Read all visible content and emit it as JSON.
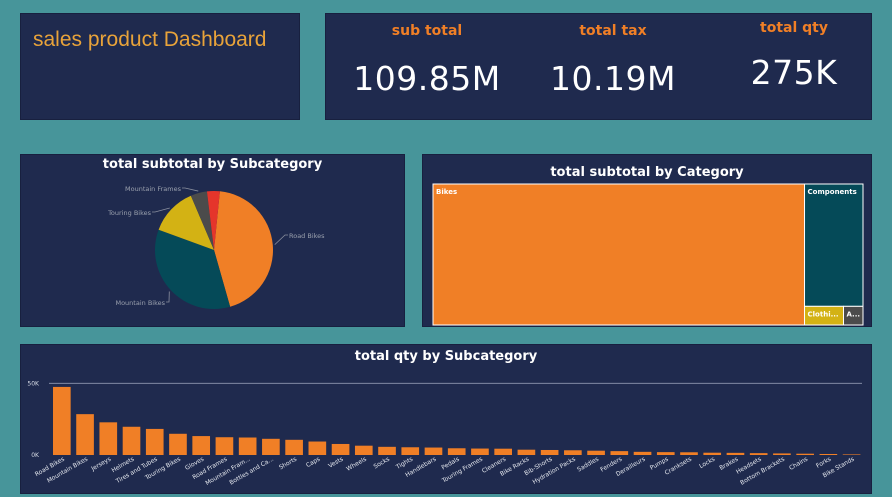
{
  "header": {
    "title": "sales product Dashboard"
  },
  "kpis": [
    {
      "label": "sub total",
      "value": "109.85M"
    },
    {
      "label": "total tax",
      "value": "10.19M"
    },
    {
      "label": "total qty",
      "value": "275K"
    }
  ],
  "colors": {
    "orange": "#f07f26",
    "teal": "#054a58",
    "gold": "#d3b214",
    "gray": "#4b4b4b",
    "red": "#e5352b",
    "panel": "#1f2a4e",
    "background": "#47959a"
  },
  "chart_data": [
    {
      "type": "pie",
      "title": "total subtotal by Subcategory",
      "slices": [
        {
          "name": "Road Bikes",
          "value": 0.44,
          "color": "#f07f26"
        },
        {
          "name": "Mountain Bikes",
          "value": 0.35,
          "color": "#054a58"
        },
        {
          "name": "Touring Bikes",
          "value": 0.13,
          "color": "#d3b214"
        },
        {
          "name": "Mountain Frames",
          "value": 0.045,
          "color": "#4b4b4b"
        },
        {
          "name": "",
          "value": 0.035,
          "color": "#e5352b"
        }
      ],
      "labels": [
        "Road Bikes",
        "Mountain Bikes",
        "Touring Bikes",
        "Mountain Frames"
      ]
    },
    {
      "type": "treemap",
      "title": "total subtotal by Category",
      "items": [
        {
          "name": "Bikes",
          "value": 86.4,
          "color": "#f07f26"
        },
        {
          "name": "Components",
          "value": 11.8,
          "color": "#054a58"
        },
        {
          "name": "Clothi...",
          "value": 1.2,
          "color": "#d3b214"
        },
        {
          "name": "A...",
          "value": 0.6,
          "color": "#4b4b4b"
        }
      ]
    },
    {
      "type": "bar",
      "title": "total qty by Subcategory",
      "ylim": [
        0,
        60000
      ],
      "yticks": [
        {
          "value": 0,
          "label": "0K"
        },
        {
          "value": 50000,
          "label": "50K"
        }
      ],
      "categories": [
        "Road Bikes",
        "Mountain Bikes",
        "Jerseys",
        "Helmets",
        "Tires and Tubes",
        "Touring Bikes",
        "Gloves",
        "Road Frames",
        "Mountain Fram...",
        "Bottles and Ca...",
        "Shorts",
        "Caps",
        "Vests",
        "Wheels",
        "Socks",
        "Tights",
        "Handlebars",
        "Pedals",
        "Touring Frames",
        "Cleaners",
        "Bike Racks",
        "Bib-Shorts",
        "Hydration Packs",
        "Saddles",
        "Fenders",
        "Derailleurs",
        "Pumps",
        "Cranksets",
        "Locks",
        "Brakes",
        "Headsets",
        "Bottom Brackets",
        "Chains",
        "Forks",
        "Bike Stands"
      ],
      "values": [
        47500,
        28500,
        22800,
        19700,
        18200,
        14800,
        13200,
        12400,
        12200,
        11300,
        10600,
        9400,
        7700,
        6500,
        5700,
        5400,
        5200,
        4700,
        4500,
        4400,
        3700,
        3500,
        3300,
        3000,
        2700,
        2200,
        2000,
        1900,
        1600,
        1500,
        1300,
        1100,
        900,
        700,
        400
      ],
      "color": "#f07f26"
    }
  ]
}
